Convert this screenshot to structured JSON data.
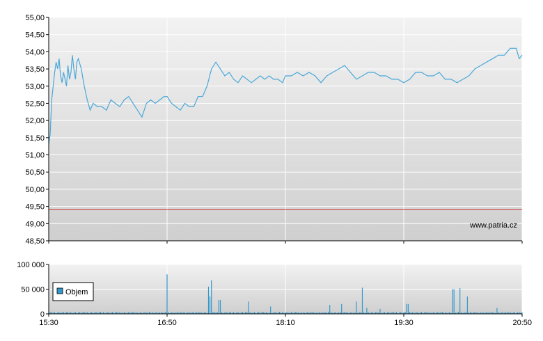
{
  "chart_data": [
    {
      "type": "line",
      "title": "",
      "xlabel": "",
      "ylabel": "",
      "x_ticks": [
        "15:30",
        "16:50",
        "18:10",
        "19:30",
        "20:50"
      ],
      "x_range_minutes": [
        930,
        1250
      ],
      "y_ticks": [
        "55,00",
        "54,50",
        "54,00",
        "53,50",
        "53,00",
        "52,50",
        "52,00",
        "51,50",
        "51,00",
        "50,50",
        "50,00",
        "49,50",
        "49,00",
        "48,50"
      ],
      "ylim": [
        48.5,
        55.0
      ],
      "grid": true,
      "reference_line": {
        "value": 49.4,
        "color": "#cc3333"
      },
      "series": [
        {
          "color": "#4aa8d8",
          "x": [
            "15:30",
            "15:31",
            "15:32",
            "15:33",
            "15:34",
            "15:35",
            "15:36",
            "15:37",
            "15:38",
            "15:39",
            "15:40",
            "15:41",
            "15:42",
            "15:43",
            "15:44",
            "15:45",
            "15:46",
            "15:47",
            "15:48",
            "15:49",
            "15:50",
            "15:52",
            "15:54",
            "15:56",
            "15:58",
            "16:00",
            "16:03",
            "16:06",
            "16:09",
            "16:12",
            "16:15",
            "16:18",
            "16:21",
            "16:24",
            "16:27",
            "16:30",
            "16:33",
            "16:36",
            "16:39",
            "16:42",
            "16:45",
            "16:48",
            "16:50",
            "16:53",
            "16:56",
            "16:59",
            "17:02",
            "17:05",
            "17:08",
            "17:11",
            "17:14",
            "17:17",
            "17:20",
            "17:23",
            "17:26",
            "17:29",
            "17:32",
            "17:35",
            "17:38",
            "17:41",
            "17:44",
            "17:47",
            "17:50",
            "17:53",
            "17:56",
            "17:59",
            "18:02",
            "18:05",
            "18:08",
            "18:10",
            "18:14",
            "18:18",
            "18:22",
            "18:26",
            "18:30",
            "18:34",
            "18:38",
            "18:42",
            "18:46",
            "18:50",
            "18:54",
            "18:58",
            "19:02",
            "19:06",
            "19:10",
            "19:14",
            "19:18",
            "19:22",
            "19:26",
            "19:30",
            "19:34",
            "19:38",
            "19:42",
            "19:46",
            "19:50",
            "19:54",
            "19:58",
            "20:02",
            "20:06",
            "20:10",
            "20:14",
            "20:18",
            "20:22",
            "20:26",
            "20:30",
            "20:34",
            "20:38",
            "20:42",
            "20:46",
            "20:48",
            "20:50"
          ],
          "values": [
            51.3,
            51.6,
            52.6,
            53.0,
            53.4,
            53.7,
            53.5,
            53.8,
            53.3,
            53.1,
            53.4,
            53.2,
            53.0,
            53.6,
            53.2,
            53.4,
            53.9,
            53.5,
            53.2,
            53.7,
            53.8,
            53.5,
            53.0,
            52.6,
            52.3,
            52.5,
            52.4,
            52.4,
            52.3,
            52.6,
            52.5,
            52.4,
            52.6,
            52.7,
            52.5,
            52.3,
            52.1,
            52.5,
            52.6,
            52.5,
            52.6,
            52.7,
            52.7,
            52.5,
            52.4,
            52.3,
            52.5,
            52.4,
            52.4,
            52.7,
            52.7,
            53.0,
            53.5,
            53.7,
            53.5,
            53.3,
            53.4,
            53.2,
            53.1,
            53.3,
            53.2,
            53.1,
            53.2,
            53.3,
            53.2,
            53.3,
            53.2,
            53.2,
            53.1,
            53.3,
            53.3,
            53.4,
            53.3,
            53.4,
            53.3,
            53.1,
            53.3,
            53.4,
            53.5,
            53.6,
            53.4,
            53.2,
            53.3,
            53.4,
            53.4,
            53.3,
            53.3,
            53.2,
            53.2,
            53.1,
            53.2,
            53.4,
            53.4,
            53.3,
            53.3,
            53.4,
            53.2,
            53.2,
            53.1,
            53.2,
            53.3,
            53.5,
            53.6,
            53.7,
            53.8,
            53.9,
            53.9,
            54.1,
            54.1,
            53.8,
            53.9
          ]
        }
      ]
    },
    {
      "type": "bar",
      "title": "",
      "xlabel": "",
      "ylabel": "",
      "x_ticks": [
        "15:30",
        "16:50",
        "18:10",
        "19:30",
        "20:50"
      ],
      "x_range_minutes": [
        930,
        1250
      ],
      "y_ticks": [
        "100 000",
        "50 000",
        "0"
      ],
      "ylim": [
        0,
        100000
      ],
      "grid": true,
      "legend_position": "bottom-left",
      "series": [
        {
          "name": "Objem",
          "color": "#3399cc",
          "baseline_volume": 3000,
          "spikes": [
            {
              "x": "16:50",
              "value": 80000
            },
            {
              "x": "17:18",
              "value": 55000
            },
            {
              "x": "17:19",
              "value": 35000
            },
            {
              "x": "17:20",
              "value": 68000
            },
            {
              "x": "17:25",
              "value": 28000
            },
            {
              "x": "17:26",
              "value": 28000
            },
            {
              "x": "17:45",
              "value": 25000
            },
            {
              "x": "18:00",
              "value": 15000
            },
            {
              "x": "18:40",
              "value": 18000
            },
            {
              "x": "18:48",
              "value": 20000
            },
            {
              "x": "18:58",
              "value": 25000
            },
            {
              "x": "19:02",
              "value": 53000
            },
            {
              "x": "19:05",
              "value": 12000
            },
            {
              "x": "19:14",
              "value": 10000
            },
            {
              "x": "19:32",
              "value": 20000
            },
            {
              "x": "19:33",
              "value": 20000
            },
            {
              "x": "20:03",
              "value": 50000
            },
            {
              "x": "20:04",
              "value": 50000
            },
            {
              "x": "20:08",
              "value": 52000
            },
            {
              "x": "20:13",
              "value": 35000
            },
            {
              "x": "20:33",
              "value": 12000
            }
          ]
        }
      ]
    }
  ],
  "watermark": "www.patria.cz",
  "legend_label": "Objem"
}
